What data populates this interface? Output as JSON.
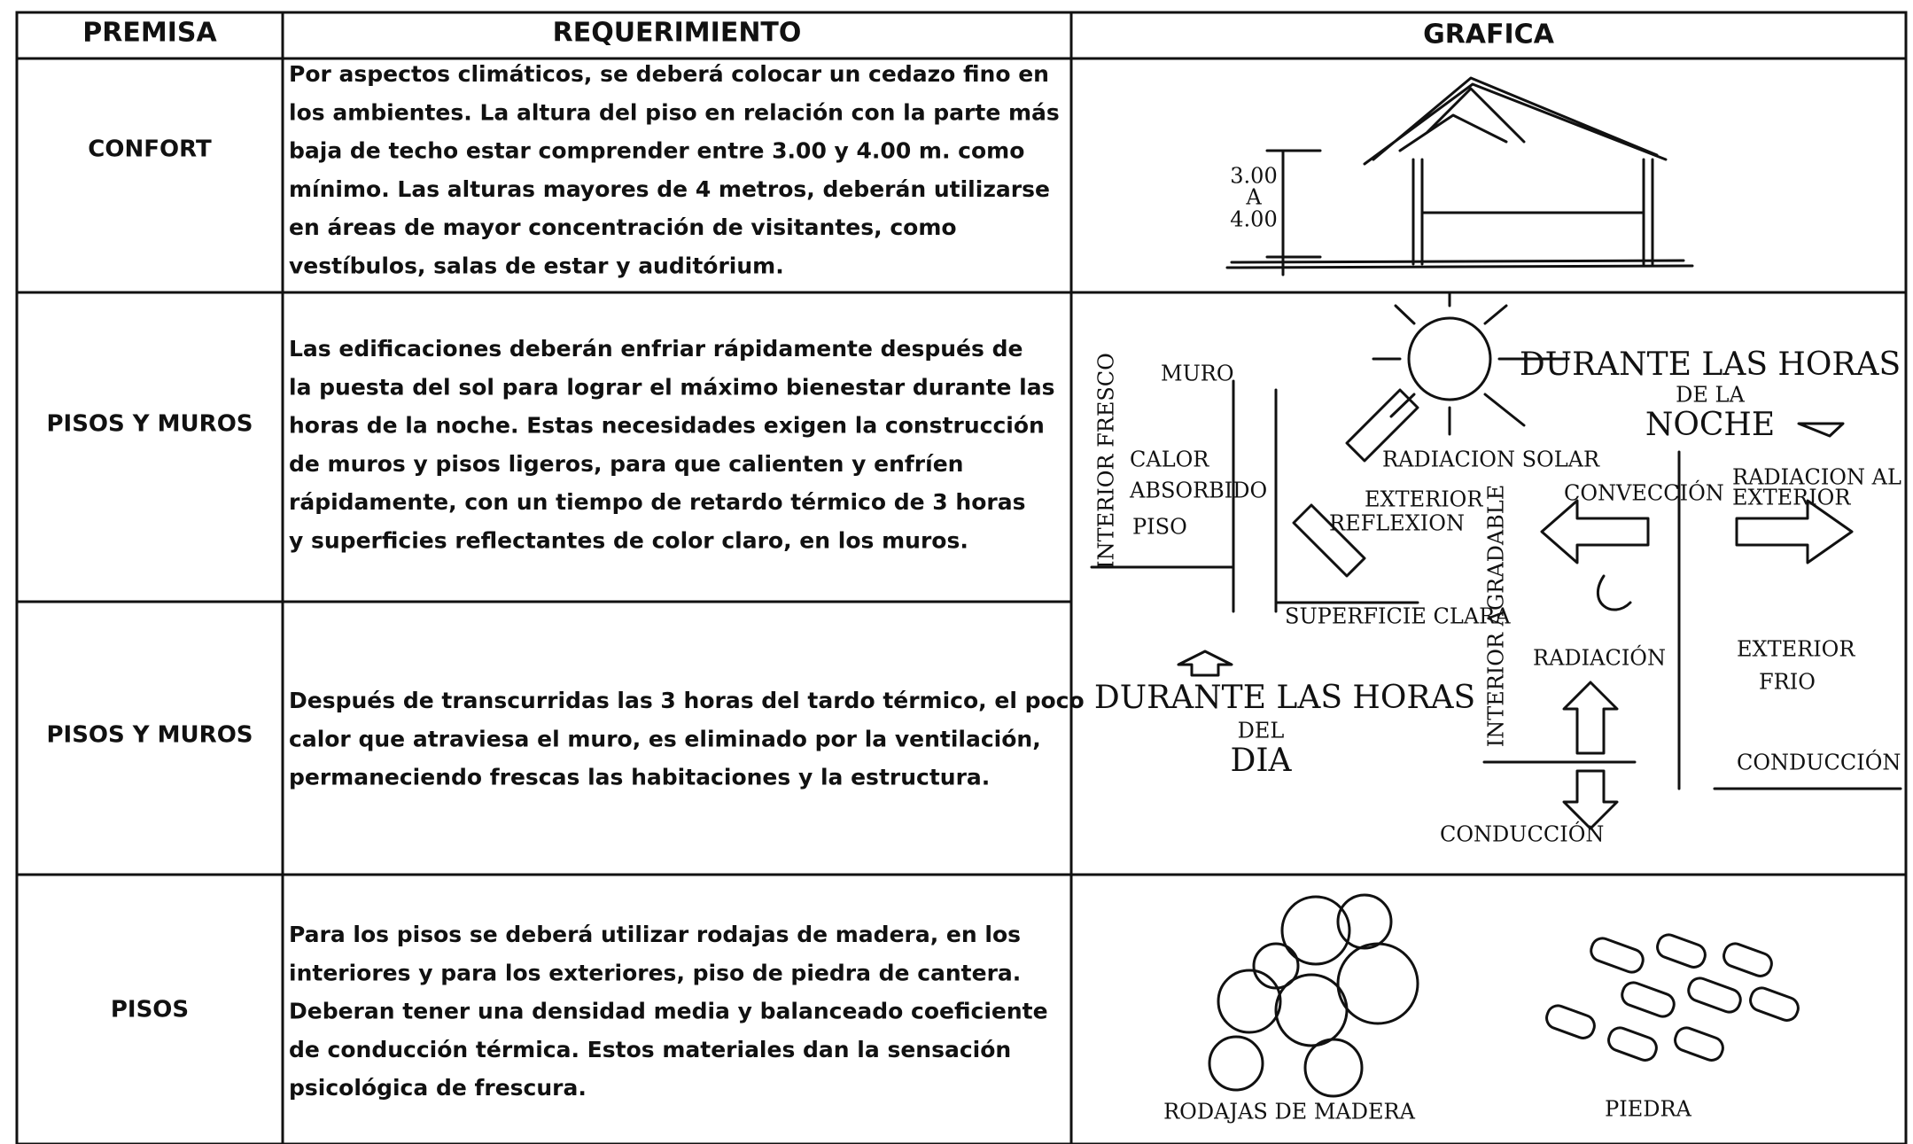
{
  "table": {
    "headers": [
      "PREMISA",
      "REQUERIMIENTO",
      "GRAFICA"
    ],
    "rows": [
      {
        "premisa": "CONFORT",
        "requerimiento": [
          "Por aspectos climáticos, se deberá colocar un cedazo fino en",
          "los ambientes. La altura del piso en relación con la parte más",
          "baja de techo estar comprender entre 3.00 y 4.00 m. como",
          "mínimo. Las alturas mayores de 4 metros, deberán utilizarse",
          "en áreas de mayor concentración de visitantes, como",
          "vestíbulos, salas de estar y auditórium."
        ]
      },
      {
        "premisa": "PISOS Y MUROS",
        "requerimiento": [
          "Las edificaciones deberán enfriar rápidamente después de",
          "la puesta del sol para lograr el máximo bienestar durante las",
          "horas de la noche. Estas necesidades exigen la construcción",
          "de muros y pisos ligeros, para que calienten y enfríen",
          "rápidamente, con un tiempo de retardo térmico de 3 horas",
          "y superficies reflectantes de color claro, en los muros."
        ]
      },
      {
        "premisa": "PISOS Y MUROS",
        "requerimiento": [
          "Después de transcurridas las 3 horas del tardo térmico, el poco",
          "calor que atraviesa el muro, es eliminado por la ventilación,",
          "permaneciendo frescas las habitaciones y la estructura."
        ]
      },
      {
        "premisa": "PISOS",
        "requerimiento": [
          "Para los pisos se deberá utilizar rodajas de madera, en los",
          "interiores y para los exteriores, piso de piedra de cantera.",
          "Deberan tener una densidad media y balanceado coeficiente",
          "de conducción térmica. Estos materiales dan la sensación",
          "psicológica de frescura."
        ]
      }
    ]
  },
  "graphics": {
    "height": [
      "3.00",
      "A",
      "4.00"
    ],
    "labels": [
      "MURO",
      "CALOR",
      "ABSORBIDO",
      "PISO",
      "INTERIOR FRESCO",
      "RADIACION SOLAR",
      "EXTERIOR",
      "REFLEXION",
      "CONVECCIÓN",
      "RADIACION AL",
      "EXTERIOR",
      "INTERIOR AGRADABLE",
      "SUPERFICIE CLARA",
      "RADIACIÓN",
      "EXTERIOR",
      "FRIO",
      "CONDUCCIÓN",
      "CONDUCCIÓN",
      "RODAJAS DE MADERA",
      "PIEDRA"
    ],
    "night": [
      "DURANTE LAS HORAS",
      "DE LA",
      "NOCHE"
    ],
    "day": [
      "DURANTE LAS HORAS",
      "DEL",
      "DIA"
    ]
  }
}
